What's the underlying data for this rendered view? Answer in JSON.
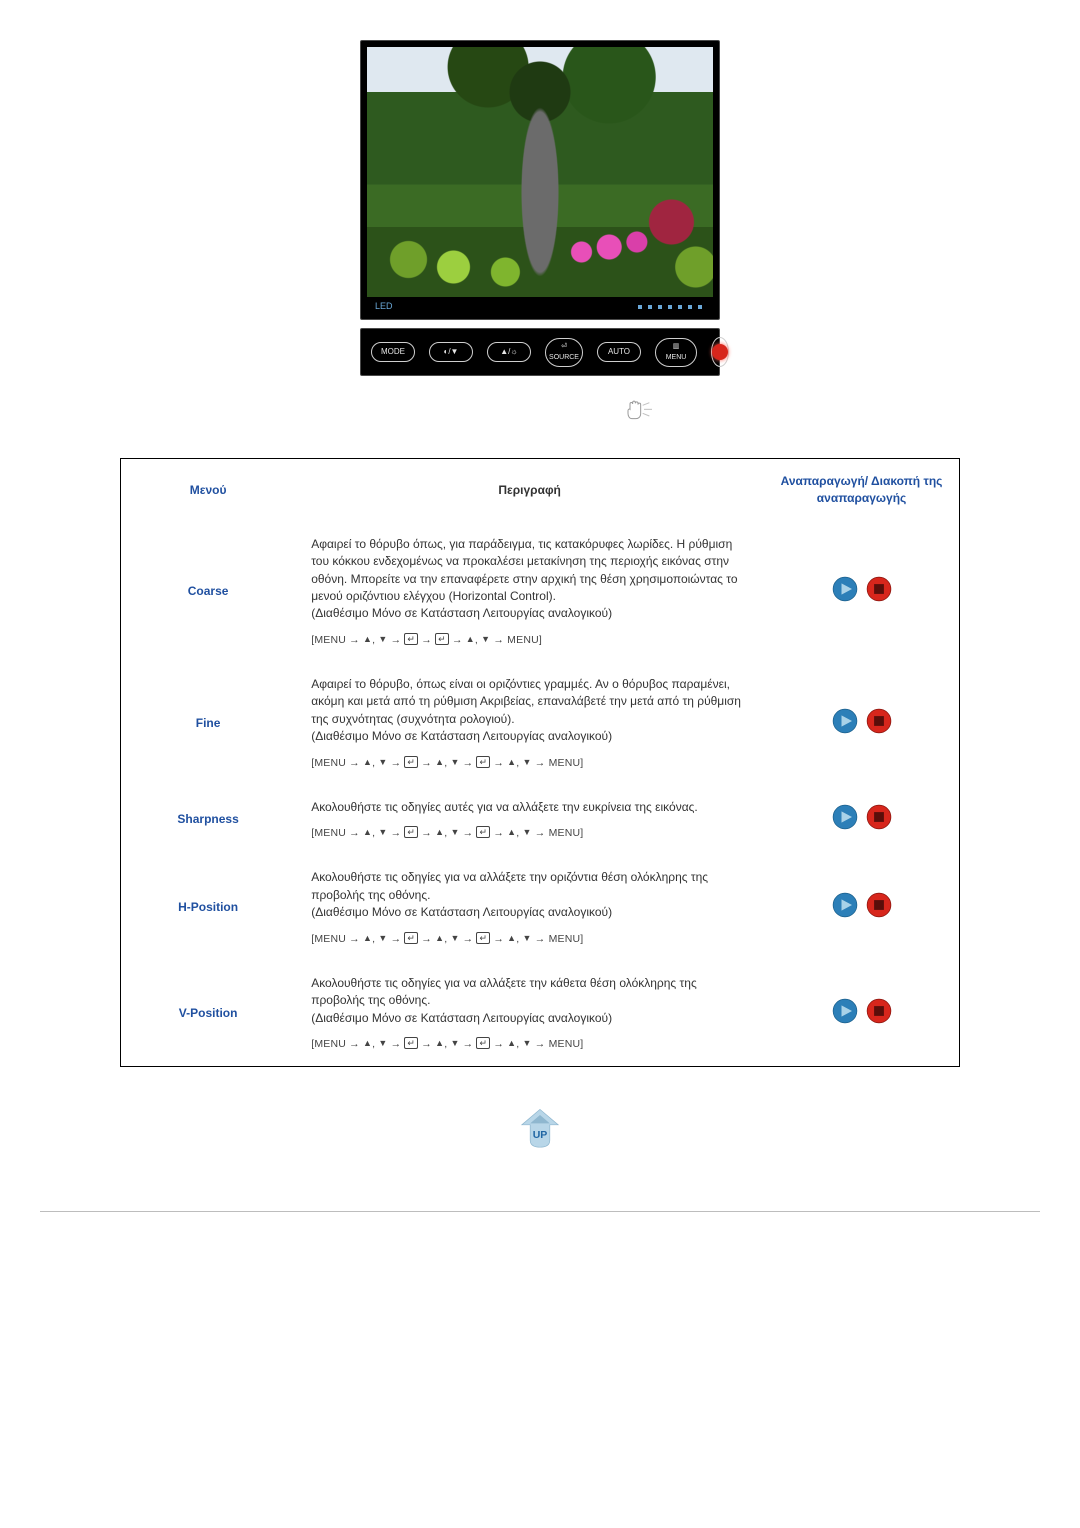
{
  "monitor": {
    "led_label": "LED",
    "buttons": {
      "mode": "MODE",
      "contrast": "◐/▼",
      "bright": "▲/☼",
      "source_top": "⏎",
      "source_bottom": "SOURCE",
      "auto": "AUTO",
      "menu_top": "▥",
      "menu_bottom": "MENU"
    }
  },
  "table": {
    "headers": {
      "menu": "Μενού",
      "desc": "Περιγραφή",
      "play": "Αναπαραγωγή/ Διακοπή της αναπαραγωγής"
    },
    "nav": {
      "menu_word": "MENU",
      "arrow": "→",
      "up": "▲",
      "down": "▼",
      "open": "[MENU",
      "close": "MENU]"
    },
    "rows": [
      {
        "name": "Coarse",
        "desc": "Αφαιρεί το θόρυβο όπως, για παράδειγμα, τις κατακόρυφες λωρίδες. Η ρύθμιση του κόκκου ενδεχομένως να προκαλέσει μετακίνηση της περιοχής εικόνας στην οθόνη. Μπορείτε να την επαναφέρετε στην αρχική της θέση χρησιμοποιώντας το μενού οριζόντιου ελέγχου (Horizontal Control).\n(Διαθέσιμο Μόνο σε Κατάσταση Λειτουργίας αναλογικού)",
        "seq": "A"
      },
      {
        "name": "Fine",
        "desc": "Αφαιρεί το θόρυβο, όπως είναι οι οριζόντιες γραμμές. Αν ο θόρυβος παραμένει, ακόμη και μετά από τη ρύθμιση Ακριβείας, επαναλάβετέ την μετά από τη ρύθμιση της συχνότητας (συχνότητα ρολογιού).\n(Διαθέσιμο Μόνο σε Κατάσταση Λειτουργίας αναλογικού)",
        "seq": "B"
      },
      {
        "name": "Sharpness",
        "desc": "Ακολουθήστε τις οδηγίες αυτές για να αλλάξετε την ευκρίνεια της εικόνας.",
        "seq": "B"
      },
      {
        "name": "H-Position",
        "desc": "Ακολουθήστε τις οδηγίες για να αλλάξετε την οριζόντια θέση ολόκληρης της προβολής της οθόνης.\n(Διαθέσιμο Μόνο σε Κατάσταση Λειτουργίας αναλογικού)",
        "seq": "B"
      },
      {
        "name": "V-Position",
        "desc": "Ακολουθήστε τις οδηγίες για να αλλάξετε την κάθετα θέση ολόκληρης της προβολής της οθόνης.\n(Διαθέσιμο Μόνο σε Κατάσταση Λειτουργίας αναλογικού)",
        "seq": "B"
      }
    ],
    "colors": {
      "header_text": "#2050a0",
      "body_text": "#333333",
      "play_fill": "#2c7fb8",
      "play_tri": "#a9d2e8",
      "stop_fill": "#d7261c",
      "stop_sq": "#5a0e0a",
      "up_badge_bg": "#b8d6e8",
      "up_badge_text": "#2066a3",
      "up_badge_arrow": "#8fb7cf"
    }
  }
}
